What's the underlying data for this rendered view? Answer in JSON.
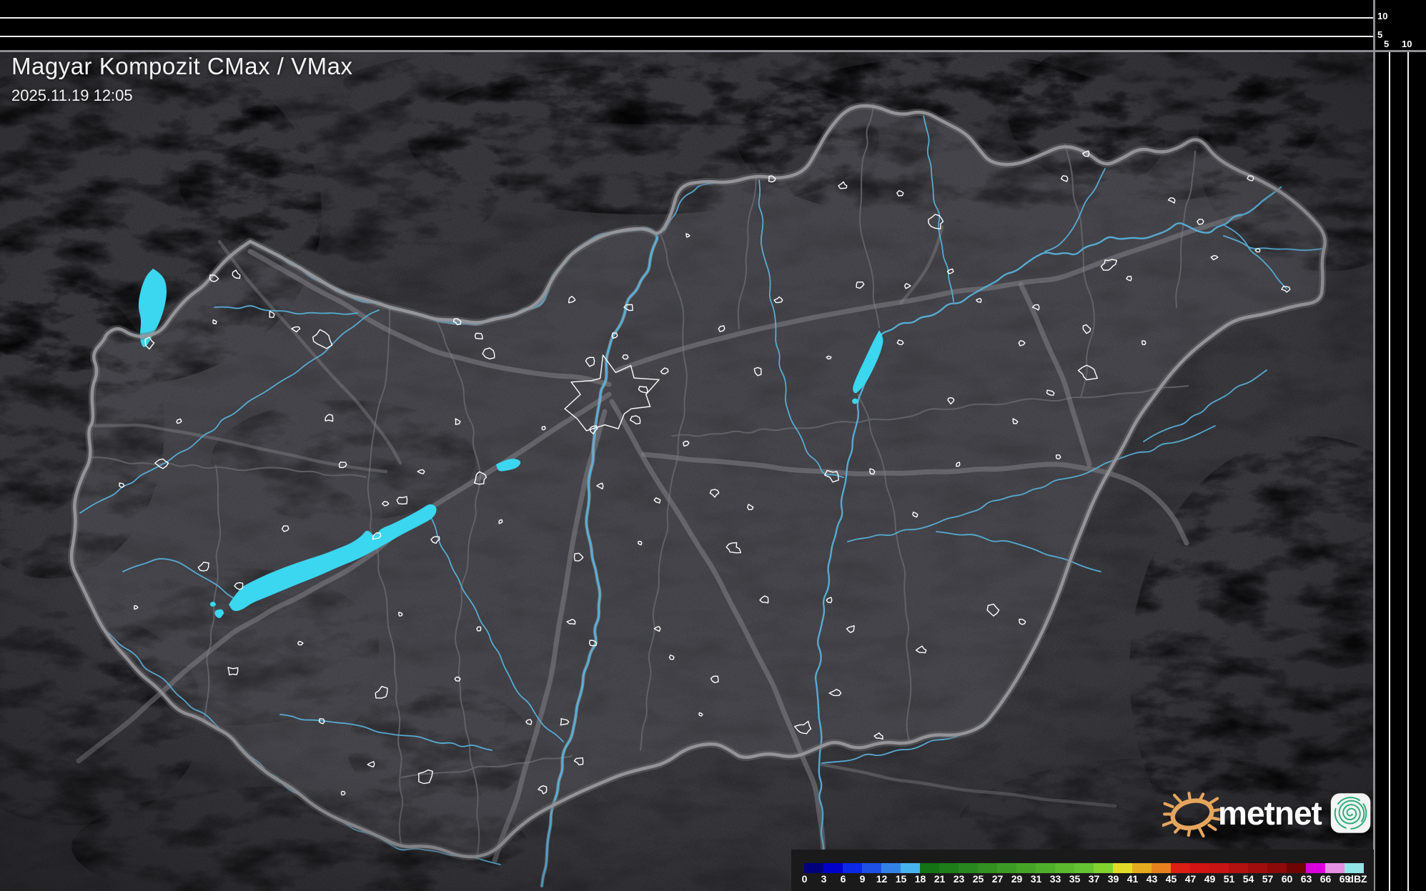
{
  "header": {
    "title": "Magyar Kompozit CMax / VMax",
    "datetime": "2025.11.19 12:05"
  },
  "legend": {
    "unit": "dBZ",
    "ticks": [
      "0",
      "3",
      "6",
      "9",
      "12",
      "15",
      "18",
      "21",
      "23",
      "25",
      "27",
      "29",
      "31",
      "33",
      "35",
      "37",
      "39",
      "41",
      "43",
      "45",
      "47",
      "49",
      "51",
      "54",
      "57",
      "60",
      "63",
      "66",
      "69"
    ],
    "colors": [
      "#00007d",
      "#0000c8",
      "#0a28e6",
      "#1e50e6",
      "#3282e6",
      "#46b4f0",
      "#147314",
      "#1e7d19",
      "#28871e",
      "#329121",
      "#3c9b24",
      "#46a527",
      "#50af2a",
      "#5ab92d",
      "#64c330",
      "#82d22d",
      "#e1dc28",
      "#e6aa1e",
      "#e6821e",
      "#dc1e14",
      "#d21414",
      "#c81414",
      "#b41111",
      "#a00d0d",
      "#8c0a0a",
      "#6e0505",
      "#dc00dc",
      "#e691e1",
      "#91e6e6"
    ]
  },
  "profile_axes": {
    "top_labels": [
      "10",
      "5"
    ],
    "right_labels": [
      "5",
      "10"
    ]
  },
  "logo": {
    "text": "metnet"
  },
  "map_colors": {
    "base": "#3a3a3f",
    "interior_tint": "#90909a",
    "country_border": "#97979c",
    "county_border": "#64646a",
    "road": "#86868c",
    "river": "#58b0d8",
    "river_glow": "#a8d4e4",
    "lake": "#3bd6ef",
    "city_outline": "#ffffff",
    "sun": "#e6a55e",
    "spiral": "#2fae7a"
  }
}
